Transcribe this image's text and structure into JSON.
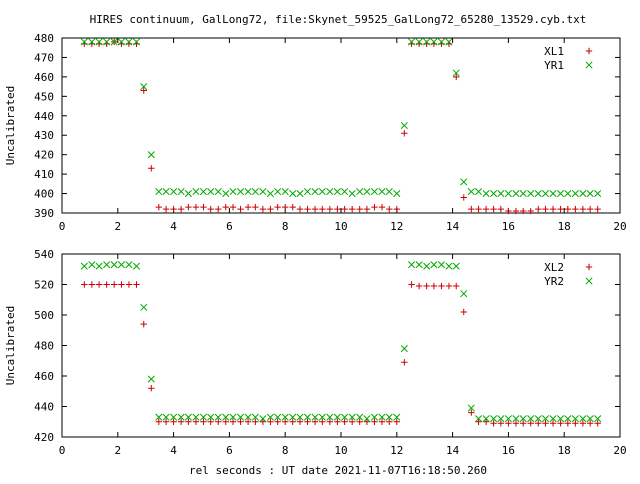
{
  "page": {
    "title": "HIRES continuum, GalLong72, file:Skynet_59525_GalLong72_65280_13529.cyb.txt",
    "xlabel": "rel seconds : UT date 2021-11-07T16:18:50.260"
  },
  "chart_data": [
    {
      "type": "scatter",
      "ylabel": "Uncalibrated",
      "xlim": [
        0,
        20
      ],
      "ylim": [
        390,
        480
      ],
      "xticks": [
        0,
        2,
        4,
        6,
        8,
        10,
        12,
        14,
        16,
        18,
        20
      ],
      "yticks": [
        390,
        400,
        410,
        420,
        430,
        440,
        450,
        460,
        470,
        480
      ],
      "legend_position": "top-right",
      "series": [
        {
          "name": "XL1",
          "color": "#cc0000",
          "marker": "plus",
          "x": [
            0.8,
            1.07,
            1.33,
            1.6,
            1.87,
            2.13,
            2.4,
            2.67,
            2.93,
            3.2,
            3.47,
            3.73,
            4.0,
            4.27,
            4.53,
            4.8,
            5.07,
            5.33,
            5.6,
            5.87,
            6.13,
            6.4,
            6.67,
            6.93,
            7.2,
            7.47,
            7.73,
            8.0,
            8.27,
            8.53,
            8.8,
            9.07,
            9.33,
            9.6,
            9.87,
            10.13,
            10.4,
            10.67,
            10.93,
            11.2,
            11.47,
            11.73,
            12.0,
            12.27,
            12.53,
            12.8,
            13.07,
            13.33,
            13.6,
            13.87,
            14.13,
            14.4,
            14.67,
            14.93,
            15.2,
            15.47,
            15.73,
            16.0,
            16.27,
            16.53,
            16.8,
            17.07,
            17.33,
            17.6,
            17.87,
            18.13,
            18.4,
            18.67,
            18.93,
            19.2
          ],
          "y": [
            477,
            477,
            477,
            477,
            478,
            477,
            477,
            477,
            453,
            413,
            393,
            392,
            392,
            392,
            393,
            393,
            393,
            392,
            392,
            393,
            393,
            392,
            393,
            393,
            392,
            392,
            393,
            393,
            393,
            392,
            392,
            392,
            392,
            392,
            392,
            392,
            392,
            392,
            392,
            393,
            393,
            392,
            392,
            431,
            477,
            477,
            477,
            477,
            477,
            477,
            460,
            398,
            392,
            392,
            392,
            392,
            392,
            391,
            391,
            391,
            391,
            392,
            392,
            392,
            392,
            392,
            392,
            392,
            392,
            392
          ],
          "x_note": ""
        },
        {
          "name": "YR1",
          "color": "#00aa00",
          "marker": "cross",
          "x": [
            0.8,
            1.07,
            1.33,
            1.6,
            1.87,
            2.13,
            2.4,
            2.67,
            2.93,
            3.2,
            3.47,
            3.73,
            4.0,
            4.27,
            4.53,
            4.8,
            5.07,
            5.33,
            5.6,
            5.87,
            6.13,
            6.4,
            6.67,
            6.93,
            7.2,
            7.47,
            7.73,
            8.0,
            8.27,
            8.53,
            8.8,
            9.07,
            9.33,
            9.6,
            9.87,
            10.13,
            10.4,
            10.67,
            10.93,
            11.2,
            11.47,
            11.73,
            12.0,
            12.27,
            12.53,
            12.8,
            13.07,
            13.33,
            13.6,
            13.87,
            14.13,
            14.4,
            14.67,
            14.93,
            15.2,
            15.47,
            15.73,
            16.0,
            16.27,
            16.53,
            16.8,
            17.07,
            17.33,
            17.6,
            17.87,
            18.13,
            18.4,
            18.67,
            18.93,
            19.2
          ],
          "y": [
            478,
            478,
            478,
            478,
            478,
            478,
            478,
            478,
            455,
            420,
            401,
            401,
            401,
            401,
            400,
            401,
            401,
            401,
            401,
            400,
            401,
            401,
            401,
            401,
            401,
            400,
            401,
            401,
            400,
            400,
            401,
            401,
            401,
            401,
            401,
            401,
            400,
            401,
            401,
            401,
            401,
            401,
            400,
            435,
            478,
            478,
            478,
            478,
            478,
            478,
            462,
            406,
            401,
            401,
            400,
            400,
            400,
            400,
            400,
            400,
            400,
            400,
            400,
            400,
            400,
            400,
            400,
            400,
            400,
            400
          ]
        }
      ]
    },
    {
      "type": "scatter",
      "ylabel": "Uncalibrated",
      "xlim": [
        0,
        20
      ],
      "ylim": [
        420,
        540
      ],
      "xticks": [
        0,
        2,
        4,
        6,
        8,
        10,
        12,
        14,
        16,
        18,
        20
      ],
      "yticks": [
        420,
        440,
        460,
        480,
        500,
        520,
        540
      ],
      "legend_position": "top-right",
      "series": [
        {
          "name": "XL2",
          "color": "#cc0000",
          "marker": "plus",
          "x": [
            0.8,
            1.07,
            1.33,
            1.6,
            1.87,
            2.13,
            2.4,
            2.67,
            2.93,
            3.2,
            3.47,
            3.73,
            4.0,
            4.27,
            4.53,
            4.8,
            5.07,
            5.33,
            5.6,
            5.87,
            6.13,
            6.4,
            6.67,
            6.93,
            7.2,
            7.47,
            7.73,
            8.0,
            8.27,
            8.53,
            8.8,
            9.07,
            9.33,
            9.6,
            9.87,
            10.13,
            10.4,
            10.67,
            10.93,
            11.2,
            11.47,
            11.73,
            12.0,
            12.27,
            12.53,
            12.8,
            13.07,
            13.33,
            13.6,
            13.87,
            14.13,
            14.4,
            14.67,
            14.93,
            15.2,
            15.47,
            15.73,
            16.0,
            16.27,
            16.53,
            16.8,
            17.07,
            17.33,
            17.6,
            17.87,
            18.13,
            18.4,
            18.67,
            18.93,
            19.2
          ],
          "y": [
            520,
            520,
            520,
            520,
            520,
            520,
            520,
            520,
            494,
            452,
            430,
            430,
            430,
            430,
            430,
            430,
            430,
            430,
            430,
            430,
            430,
            430,
            430,
            430,
            430,
            430,
            430,
            430,
            430,
            430,
            430,
            430,
            430,
            430,
            430,
            430,
            430,
            430,
            430,
            430,
            430,
            430,
            430,
            469,
            520,
            519,
            519,
            519,
            519,
            519,
            519,
            502,
            436,
            430,
            430,
            429,
            429,
            429,
            429,
            429,
            429,
            429,
            429,
            429,
            429,
            429,
            429,
            429,
            429,
            429
          ]
        },
        {
          "name": "YR2",
          "color": "#00aa00",
          "marker": "cross",
          "x": [
            0.8,
            1.07,
            1.33,
            1.6,
            1.87,
            2.13,
            2.4,
            2.67,
            2.93,
            3.2,
            3.47,
            3.73,
            4.0,
            4.27,
            4.53,
            4.8,
            5.07,
            5.33,
            5.6,
            5.87,
            6.13,
            6.4,
            6.67,
            6.93,
            7.2,
            7.47,
            7.73,
            8.0,
            8.27,
            8.53,
            8.8,
            9.07,
            9.33,
            9.6,
            9.87,
            10.13,
            10.4,
            10.67,
            10.93,
            11.2,
            11.47,
            11.73,
            12.0,
            12.27,
            12.53,
            12.8,
            13.07,
            13.33,
            13.6,
            13.87,
            14.13,
            14.4,
            14.67,
            14.93,
            15.2,
            15.47,
            15.73,
            16.0,
            16.27,
            16.53,
            16.8,
            17.07,
            17.33,
            17.6,
            17.87,
            18.13,
            18.4,
            18.67,
            18.93,
            19.2
          ],
          "y": [
            532,
            533,
            532,
            533,
            533,
            533,
            533,
            532,
            505,
            458,
            433,
            433,
            433,
            433,
            433,
            433,
            433,
            433,
            433,
            433,
            433,
            433,
            433,
            433,
            432,
            433,
            433,
            433,
            433,
            433,
            433,
            433,
            433,
            433,
            433,
            433,
            433,
            433,
            432,
            433,
            433,
            433,
            433,
            478,
            533,
            533,
            532,
            533,
            533,
            532,
            532,
            514,
            439,
            432,
            432,
            432,
            432,
            432,
            432,
            432,
            432,
            432,
            432,
            432,
            432,
            432,
            432,
            432,
            432,
            432
          ]
        }
      ]
    }
  ]
}
